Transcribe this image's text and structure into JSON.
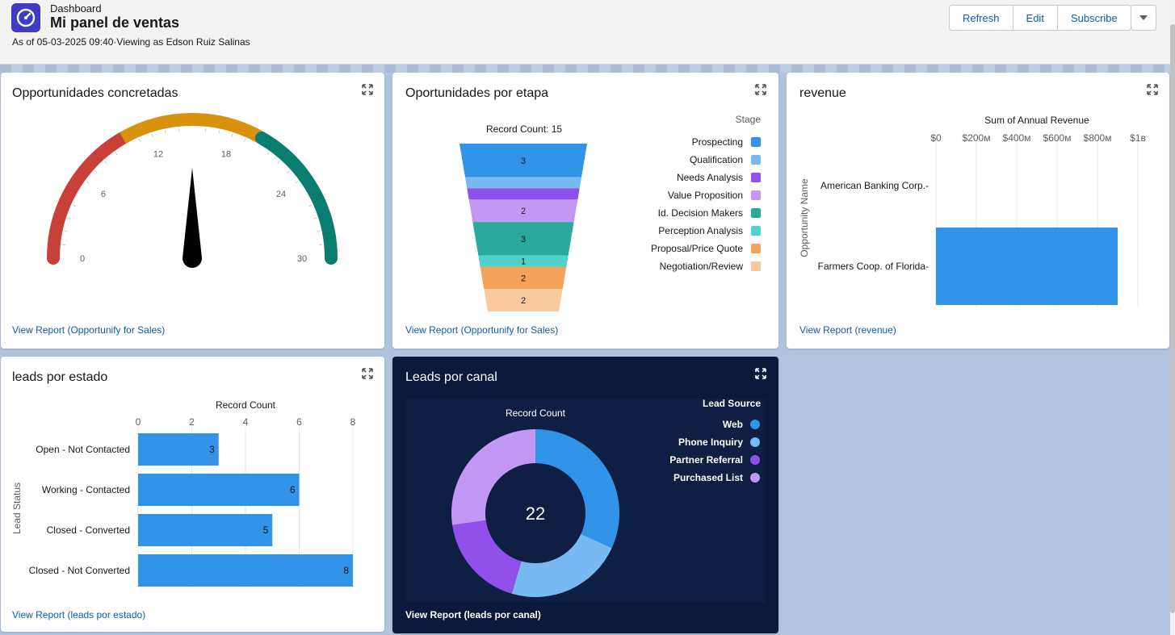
{
  "header": {
    "eyebrow": "Dashboard",
    "title": "Mi panel de ventas",
    "subtitle": "As of 05-03-2025 09:40·Viewing as Edson Ruiz Salinas",
    "buttons": {
      "refresh": "Refresh",
      "edit": "Edit",
      "subscribe": "Subscribe"
    },
    "menu_icon": "chevron-down-icon",
    "app_icon": "gauge-icon"
  },
  "colors": {
    "accent": "#0b5cab",
    "bar_blue": "#3294e8",
    "gauge_red": "#c9403a",
    "gauge_yellow": "#d8920e",
    "gauge_green": "#087d70",
    "dark_card": "#0b1a3c"
  },
  "cards": {
    "gauge": {
      "title": "Opportunidades concretadas",
      "link": "View Report (Opportunify for Sales)"
    },
    "funnel": {
      "title": "Oportunidades por etapa",
      "link": "View Report (Opportunify for Sales)"
    },
    "revenue": {
      "title": "revenue",
      "link": "View Report (revenue)"
    },
    "leads_estado": {
      "title": "leads por estado",
      "link": "View Report (leads por estado)"
    },
    "leads_canal": {
      "title": "Leads por canal",
      "link": "View Report (leads por canal)"
    }
  },
  "chart_data": [
    {
      "type": "gauge",
      "min": 0,
      "max": 30,
      "ticks": [
        "0",
        "6",
        "12",
        "18",
        "24",
        "30"
      ],
      "value": 15,
      "bands": [
        {
          "from": 0,
          "to": 10,
          "color": "#c9403a"
        },
        {
          "from": 10,
          "to": 20,
          "color": "#d8920e"
        },
        {
          "from": 20,
          "to": 30,
          "color": "#087d70"
        }
      ]
    },
    {
      "type": "funnel",
      "total_label": "Record Count: 15",
      "legend_title": "Stage",
      "stages": [
        {
          "name": "Prospecting",
          "value": 3,
          "color": "#3294e8"
        },
        {
          "name": "Qualification",
          "value": 1,
          "color": "#78b9f2"
        },
        {
          "name": "Needs Analysis",
          "value": 1,
          "color": "#9050e9"
        },
        {
          "name": "Value Proposition",
          "value": 2,
          "color": "#c398f5"
        },
        {
          "name": "Id. Decision Makers",
          "value": 3,
          "color": "#29a89b"
        },
        {
          "name": "Perception Analysis",
          "value": 1,
          "color": "#4fd2cb"
        },
        {
          "name": "Proposal/Price Quote",
          "value": 2,
          "color": "#f4a35a"
        },
        {
          "name": "Negotiation/Review",
          "value": 2,
          "color": "#fac99d"
        }
      ]
    },
    {
      "type": "bar",
      "orientation": "horizontal",
      "title": "Sum of Annual Revenue",
      "ylabel": "Opportunity Name",
      "ticks": [
        {
          "value": 0,
          "label": "$0"
        },
        {
          "value": 200,
          "label": "$200м"
        },
        {
          "value": 400,
          "label": "$400м"
        },
        {
          "value": 600,
          "label": "$600м"
        },
        {
          "value": 800,
          "label": "$800м"
        },
        {
          "value": 1000,
          "label": "$1в"
        }
      ],
      "xlim": [
        0,
        1000
      ],
      "categories": [
        "American Banking Corp.-",
        "Farmers Coop. of Florida-"
      ],
      "values": [
        0,
        900
      ],
      "grid": true
    },
    {
      "type": "bar",
      "orientation": "horizontal",
      "title": "Record Count",
      "ylabel": "Lead Status",
      "ticks": [
        "0",
        "2",
        "4",
        "6",
        "8"
      ],
      "xlim": [
        0,
        8
      ],
      "categories": [
        "Open - Not Contacted",
        "Working - Contacted",
        "Closed - Converted",
        "Closed - Not Converted"
      ],
      "values": [
        3,
        6,
        5,
        8
      ],
      "grid": true
    },
    {
      "type": "pie",
      "donut": true,
      "title": "Record Count",
      "total": "22",
      "legend_title": "Lead Source",
      "legend_position": "top-right",
      "slices": [
        {
          "name": "Web",
          "value": 7,
          "color": "#3294e8"
        },
        {
          "name": "Phone Inquiry",
          "value": 5,
          "color": "#78b9f2"
        },
        {
          "name": "Partner Referral",
          "value": 4,
          "color": "#9050e9"
        },
        {
          "name": "Purchased List",
          "value": 6,
          "color": "#c398f5"
        }
      ]
    }
  ]
}
